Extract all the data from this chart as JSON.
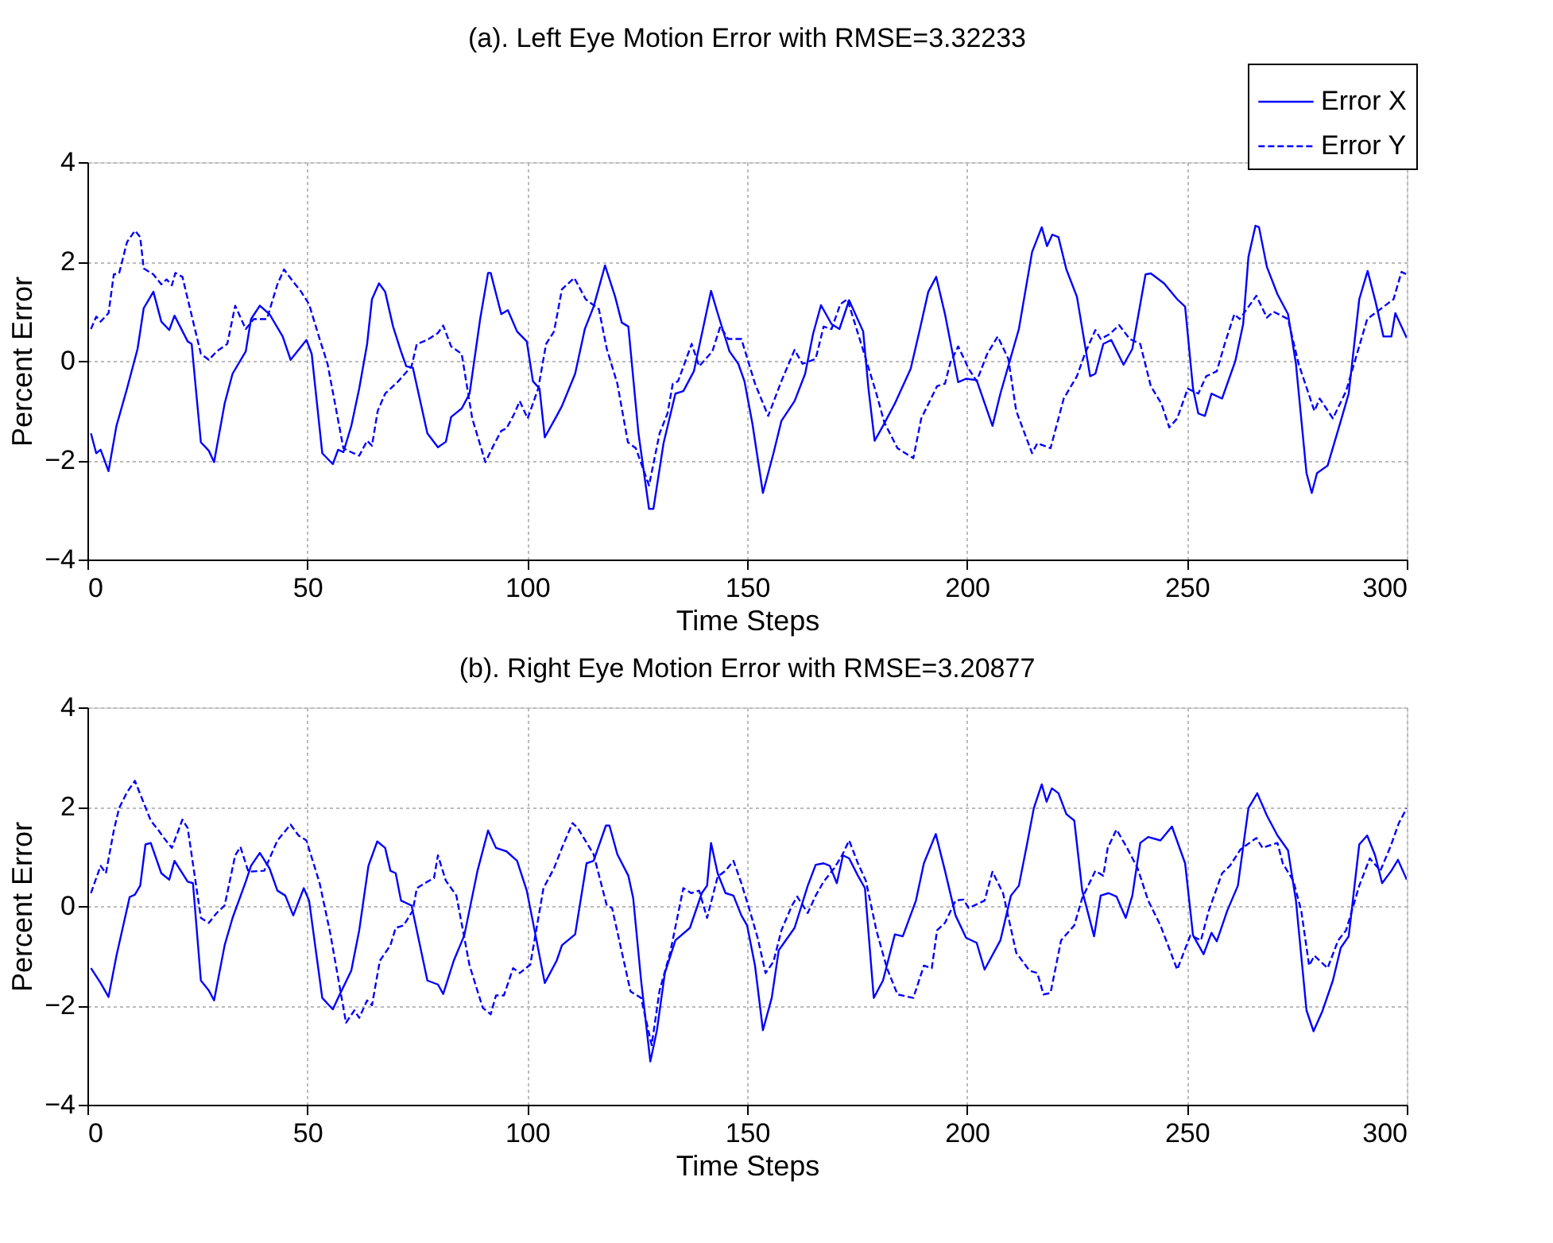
{
  "chart_data": [
    {
      "type": "line",
      "title": "(a). Left Eye Motion Error with RMSE=3.32233",
      "xlabel": "Time Steps",
      "ylabel": "Percent Error",
      "xlim": [
        0,
        300
      ],
      "xticks": [
        0,
        50,
        100,
        150,
        200,
        250,
        300
      ],
      "ylim": [
        -4,
        4
      ],
      "yticks": [
        -4,
        -2,
        0,
        2,
        4
      ],
      "grid": true,
      "legend": "top right",
      "series": [
        {
          "name": "Error X",
          "color": "#0000ff",
          "line_style": "solid",
          "x": [
            0.8,
            2,
            3,
            4.8,
            6.6,
            9,
            11.4,
            12.8,
            15,
            16.8,
            18.6,
            19.8,
            22.8,
            23.7,
            25.8,
            27.6,
            28.8,
            31.2,
            33,
            36,
            37.2,
            39.2,
            41.4,
            44.4,
            46.2,
            49.8,
            51,
            53.4,
            55.8,
            57,
            58.2,
            60,
            61.8,
            63.6,
            64.7,
            66.3,
            67.7,
            69.5,
            71.3,
            72.5,
            74,
            77.3,
            79.7,
            81.5,
            82.7,
            85.1,
            86.9,
            89.3,
            91.1,
            91.7,
            94.1,
            95.6,
            97.7,
            99.9,
            101.3,
            102.8,
            104,
            106.7,
            107.9,
            110.9,
            113.1,
            115.1,
            117.7,
            120,
            121.5,
            123,
            125.3,
            127.7,
            128.7,
            131,
            133.7,
            135.5,
            137.9,
            141.8,
            143.3,
            146,
            148,
            149.4,
            151.2,
            153.6,
            156,
            157.8,
            160.8,
            163.2,
            165,
            166.8,
            169.2,
            171,
            173.2,
            176.4,
            177.6,
            179,
            180.9,
            183.6,
            187.2,
            189.3,
            191.2,
            193,
            195,
            198,
            199.8,
            202.2,
            205.8,
            207.6,
            211.8,
            214.8,
            217,
            218.2,
            219.4,
            220.8,
            222.6,
            225,
            228,
            229.2,
            231,
            232.8,
            235.6,
            237.6,
            240.6,
            241.8,
            244.8,
            247.8,
            249.6,
            251.4,
            252.6,
            254.1,
            255.6,
            258,
            261,
            262.8,
            264,
            265.6,
            266.4,
            268.2,
            270.6,
            273,
            274.8,
            277.2,
            278.4,
            279.6,
            282,
            285,
            286.8,
            289.2,
            291.1,
            292.9,
            294.7,
            296.5,
            297.4,
            300
          ],
          "values": [
            -1.46,
            -1.86,
            -1.79,
            -2.22,
            -1.31,
            -0.56,
            0.24,
            1.06,
            1.39,
            0.79,
            0.62,
            0.91,
            0.39,
            0.34,
            -1.64,
            -1.81,
            -2.04,
            -0.86,
            -0.26,
            0.19,
            0.84,
            1.11,
            0.94,
            0.49,
            0.02,
            0.42,
            0.14,
            -1.86,
            -2.08,
            -1.79,
            -1.84,
            -1.31,
            -0.56,
            0.34,
            1.24,
            1.56,
            1.39,
            0.69,
            0.19,
            -0.11,
            -0.14,
            -1.46,
            -1.74,
            -1.63,
            -1.13,
            -0.96,
            -0.66,
            0.84,
            1.77,
            1.77,
            0.94,
            1.02,
            0.59,
            0.39,
            -0.41,
            -0.56,
            -1.54,
            -1.11,
            -0.91,
            -0.26,
            0.64,
            1.09,
            1.92,
            1.29,
            0.77,
            0.69,
            -1.46,
            -2.98,
            -2.98,
            -1.66,
            -0.66,
            -0.61,
            -0.21,
            1.41,
            0.96,
            0.19,
            -0.06,
            -0.41,
            -1.26,
            -2.66,
            -1.86,
            -1.21,
            -0.81,
            -0.26,
            0.54,
            1.12,
            0.74,
            0.64,
            1.22,
            0.59,
            -0.56,
            -1.61,
            -1.31,
            -0.86,
            -0.16,
            0.64,
            1.39,
            1.69,
            0.94,
            -0.43,
            -0.36,
            -0.39,
            -1.31,
            -0.66,
            0.64,
            2.19,
            2.69,
            2.31,
            2.54,
            2.49,
            1.84,
            1.29,
            -0.31,
            -0.26,
            0.34,
            0.42,
            -0.08,
            0.24,
            1.74,
            1.76,
            1.56,
            1.24,
            1.09,
            -0.56,
            -1.06,
            -1.11,
            -0.66,
            -0.76,
            -0.01,
            0.74,
            2.09,
            2.72,
            2.69,
            1.89,
            1.34,
            0.94,
            -0.06,
            -2.26,
            -2.66,
            -2.26,
            -2.11,
            -1.21,
            -0.66,
            1.24,
            1.81,
            1.19,
            0.49,
            0.49,
            0.96,
            0.46
          ]
        },
        {
          "name": "Error Y",
          "color": "#0000ff",
          "line_style": "dashed",
          "x": [
            0.8,
            2,
            3,
            4.8,
            6,
            7.2,
            9,
            10.8,
            12,
            12.8,
            15,
            16.8,
            18,
            19.2,
            20,
            21.6,
            25.8,
            27.6,
            29.4,
            31.8,
            33.6,
            36,
            37.8,
            40.8,
            43.2,
            44.7,
            46.8,
            48.6,
            50.4,
            52.8,
            54.6,
            58.2,
            60,
            61.8,
            63.6,
            64.7,
            66,
            67.7,
            70.7,
            73.7,
            74.9,
            77.3,
            79.7,
            80.9,
            82.7,
            85.1,
            87.5,
            90.5,
            92.3,
            94.1,
            95.3,
            97.1,
            98.3,
            100.1,
            102.5,
            104.3,
            106.1,
            107.9,
            110.7,
            113.3,
            116.3,
            118.1,
            120.5,
            122.9,
            124.7,
            127.7,
            130.1,
            131.9,
            133.1,
            134.3,
            137.4,
            139.1,
            142.1,
            143.9,
            145.7,
            148.7,
            151.8,
            154.8,
            157.8,
            160.8,
            162.6,
            165.6,
            167.4,
            169.2,
            171.2,
            172.8,
            177,
            179.4,
            181.2,
            184.2,
            187.8,
            189.6,
            193.2,
            195,
            196.2,
            198,
            200.4,
            202.2,
            204.6,
            207,
            209.4,
            211.2,
            214.8,
            216,
            219,
            222,
            225,
            226.8,
            229.2,
            230.4,
            232.5,
            234.6,
            237,
            239.4,
            241.8,
            244.2,
            246,
            247.8,
            250.2,
            252.6,
            254.4,
            256.8,
            258.6,
            260.8,
            262,
            265.8,
            268.2,
            269.7,
            273,
            275.4,
            279,
            280.2,
            283.2,
            286.2,
            291,
            292.8,
            297,
            298.8,
            300
          ],
          "values": [
            0.64,
            0.89,
            0.79,
            0.96,
            1.74,
            1.76,
            2.39,
            2.62,
            2.49,
            1.86,
            1.74,
            1.54,
            1.64,
            1.52,
            1.77,
            1.69,
            0.14,
            0.02,
            0.19,
            0.34,
            1.11,
            0.64,
            0.84,
            0.84,
            1.54,
            1.84,
            1.59,
            1.39,
            1.14,
            0.44,
            -0.06,
            -1.76,
            -1.84,
            -1.91,
            -1.61,
            -1.71,
            -1.01,
            -0.66,
            -0.41,
            -0.11,
            0.34,
            0.42,
            0.56,
            0.71,
            0.29,
            0.14,
            -1.16,
            -2.04,
            -1.71,
            -1.41,
            -1.36,
            -1.06,
            -0.81,
            -1.16,
            -0.56,
            0.34,
            0.59,
            1.44,
            1.67,
            1.24,
            1.04,
            0.24,
            -0.46,
            -1.64,
            -1.76,
            -2.51,
            -1.46,
            -1.06,
            -0.46,
            -0.41,
            0.34,
            -0.11,
            0.19,
            0.69,
            0.44,
            0.44,
            -0.46,
            -1.11,
            -0.41,
            0.22,
            -0.06,
            0.04,
            0.69,
            0.64,
            1.14,
            1.24,
            0.04,
            -0.66,
            -1.24,
            -1.76,
            -1.96,
            -1.16,
            -0.51,
            -0.46,
            -0.04,
            0.29,
            -0.16,
            -0.41,
            0.14,
            0.49,
            0.04,
            -1.01,
            -1.86,
            -1.66,
            -1.76,
            -0.76,
            -0.31,
            0.14,
            0.62,
            0.44,
            0.54,
            0.72,
            0.44,
            0.34,
            -0.51,
            -0.86,
            -1.34,
            -1.16,
            -0.56,
            -0.66,
            -0.31,
            -0.21,
            0.34,
            0.94,
            0.84,
            1.31,
            0.87,
            0.99,
            0.84,
            -0.06,
            -1.01,
            -0.76,
            -1.16,
            -0.61,
            0.84,
            0.96,
            1.24,
            1.79,
            1.74
          ]
        }
      ]
    },
    {
      "type": "line",
      "title": "(b). Right Eye Motion Error with RMSE=3.20877",
      "xlabel": "Time Steps",
      "ylabel": "Percent Error",
      "xlim": [
        0,
        300
      ],
      "xticks": [
        0,
        50,
        100,
        150,
        200,
        250,
        300
      ],
      "ylim": [
        -4,
        4
      ],
      "yticks": [
        -4,
        -2,
        0,
        2,
        4
      ],
      "grid": true,
      "series": [
        {
          "color": "#0000ff",
          "line_style": "solid",
          "x": [
            0.8,
            3,
            4.8,
            6.6,
            9.6,
            10.8,
            12,
            13.2,
            14.4,
            16.8,
            18.6,
            19.8,
            22.8,
            24,
            25.8,
            27.6,
            28.8,
            31.2,
            33,
            36,
            37.2,
            39.2,
            41.4,
            43.2,
            45,
            46.8,
            49.2,
            50.4,
            53.4,
            55.8,
            57,
            60,
            61.8,
            63.9,
            65.9,
            67.7,
            68.9,
            70.1,
            71.3,
            73.7,
            77.3,
            79.7,
            80.9,
            83.3,
            85.7,
            88.7,
            91.1,
            92.9,
            95.3,
            97.7,
            99.9,
            101.9,
            104,
            106.7,
            107.9,
            110.9,
            113.5,
            115.1,
            117.9,
            118.7,
            120.5,
            123,
            124.1,
            125.9,
            128,
            129.5,
            131.3,
            133.7,
            137,
            139.7,
            140.9,
            141.8,
            143.3,
            145.1,
            146.9,
            148.7,
            150,
            151.8,
            153.6,
            155.6,
            157.2,
            158.4,
            160.8,
            163.8,
            165.6,
            167.4,
            168.8,
            170.4,
            171.8,
            173.2,
            175.2,
            176.8,
            178.8,
            180.9,
            183.6,
            185.4,
            188.4,
            190.2,
            192.9,
            195,
            197.4,
            199.8,
            202.2,
            204,
            207.6,
            210,
            211.8,
            213.6,
            215.2,
            217,
            218.1,
            219.3,
            220.8,
            222.6,
            224.4,
            226.2,
            228.9,
            230.4,
            232.2,
            234,
            236.1,
            237.6,
            239.4,
            241.2,
            244,
            246.6,
            249.6,
            251.4,
            253.8,
            255.6,
            256.8,
            259.2,
            261.6,
            264,
            266,
            268.2,
            270.6,
            273,
            274.8,
            277.2,
            278.8,
            280.8,
            283.2,
            285,
            286.8,
            289.2,
            291,
            292.8,
            294.4,
            296.5,
            298,
            300
          ],
          "values": [
            -1.25,
            -1.55,
            -1.83,
            -1.0,
            0.18,
            0.23,
            0.41,
            1.24,
            1.27,
            0.66,
            0.53,
            0.91,
            0.49,
            0.46,
            -1.5,
            -1.7,
            -1.9,
            -0.79,
            -0.24,
            0.49,
            0.81,
            1.07,
            0.76,
            0.31,
            0.21,
            -0.19,
            0.36,
            0.11,
            -1.85,
            -2.08,
            -1.85,
            -1.3,
            -0.49,
            0.81,
            1.3,
            1.17,
            0.71,
            0.66,
            0.11,
            0.01,
            -1.5,
            -1.58,
            -1.77,
            -1.1,
            -0.59,
            0.71,
            1.52,
            1.17,
            1.1,
            0.91,
            0.31,
            -0.59,
            -1.55,
            -1.1,
            -0.79,
            -0.57,
            0.86,
            0.91,
            1.62,
            1.62,
            1.04,
            0.61,
            0.16,
            -1.5,
            -3.13,
            -2.5,
            -1.35,
            -0.69,
            -0.44,
            0.26,
            0.41,
            1.27,
            0.66,
            0.26,
            0.21,
            -0.19,
            -0.39,
            -1.2,
            -2.5,
            -1.85,
            -0.89,
            -0.74,
            -0.44,
            0.41,
            0.83,
            0.86,
            0.81,
            0.46,
            1.02,
            0.96,
            0.61,
            0.36,
            -1.85,
            -1.5,
            -0.57,
            -0.61,
            0.11,
            0.86,
            1.45,
            0.71,
            -0.19,
            -0.64,
            -0.74,
            -1.28,
            -0.69,
            0.21,
            0.41,
            1.22,
            1.97,
            2.45,
            2.1,
            2.37,
            2.27,
            1.85,
            1.72,
            0.31,
            -0.61,
            0.21,
            0.26,
            0.19,
            -0.24,
            0.21,
            1.27,
            1.39,
            1.32,
            1.6,
            0.86,
            -0.59,
            -0.97,
            -0.54,
            -0.71,
            -0.09,
            0.41,
            1.97,
            2.27,
            1.82,
            1.42,
            1.12,
            0.11,
            -2.1,
            -2.52,
            -2.12,
            -1.5,
            -0.84,
            -0.61,
            1.24,
            1.42,
            1.02,
            0.46,
            0.71,
            0.93,
            0.53
          ]
        },
        {
          "color": "#0000ff",
          "line_style": "dashed",
          "x": [
            0.8,
            3,
            4.2,
            6,
            7.2,
            9,
            10.8,
            12.6,
            14.4,
            16.2,
            17.4,
            19.2,
            21.6,
            22.8,
            25.8,
            27.6,
            29.4,
            31.2,
            33.6,
            34.8,
            36.6,
            40.2,
            43.2,
            46.2,
            48,
            49.8,
            52.8,
            55.2,
            58.8,
            60.7,
            61.8,
            63.6,
            64.7,
            66.5,
            68.9,
            70.1,
            71.9,
            74,
            74.9,
            77.3,
            78.8,
            79.7,
            81.5,
            83.9,
            86.9,
            89.9,
            91.7,
            92.9,
            94.7,
            96.8,
            98.3,
            100.7,
            103.7,
            106.1,
            107.9,
            110.3,
            111.5,
            115.1,
            118.1,
            119.3,
            121.7,
            123.5,
            125.9,
            128.3,
            130.1,
            132.5,
            135.5,
            137.3,
            139.1,
            140.9,
            143.3,
            145.1,
            146.9,
            148.7,
            150.6,
            152.4,
            154.2,
            156,
            157.8,
            160.2,
            161.4,
            163.8,
            165.6,
            167.4,
            169.8,
            171.6,
            173.2,
            175.2,
            177,
            179.4,
            181.8,
            184.2,
            187.8,
            190.2,
            192,
            193.2,
            195,
            197.4,
            199.2,
            200.4,
            204,
            205.8,
            208.2,
            211.2,
            214.2,
            216,
            217.4,
            219,
            221.4,
            224.4,
            226.2,
            229.2,
            231,
            232,
            234,
            236.4,
            238.8,
            241.2,
            244,
            247.8,
            250.8,
            253.2,
            255,
            258,
            259.8,
            262.2,
            265.8,
            267.2,
            268.8,
            270.6,
            271.8,
            274.2,
            276,
            277.8,
            279,
            282,
            284.4,
            286.2,
            289.2,
            291.6,
            294,
            296.4,
            298.2,
            300
          ],
          "values": [
            0.26,
            0.81,
            0.66,
            1.52,
            1.97,
            2.29,
            2.52,
            2.12,
            1.72,
            1.52,
            1.37,
            1.17,
            1.74,
            1.57,
            -0.24,
            -0.34,
            -0.14,
            0.01,
            1.02,
            1.19,
            0.69,
            0.71,
            1.32,
            1.64,
            1.42,
            1.32,
            0.46,
            -0.54,
            -2.35,
            -2.1,
            -2.25,
            -1.9,
            -2.0,
            -1.1,
            -0.79,
            -0.44,
            -0.39,
            -0.09,
            0.36,
            0.49,
            0.56,
            1.02,
            0.51,
            0.21,
            -1.2,
            -2.05,
            -2.18,
            -1.8,
            -1.8,
            -1.25,
            -1.35,
            -1.18,
            0.36,
            0.76,
            1.17,
            1.67,
            1.57,
            1.04,
            0.01,
            -0.04,
            -1.0,
            -1.72,
            -1.85,
            -2.8,
            -1.7,
            -0.94,
            0.36,
            0.26,
            0.31,
            -0.24,
            0.59,
            0.71,
            0.91,
            0.46,
            -0.09,
            -0.64,
            -1.35,
            -1.12,
            -0.49,
            0.01,
            0.19,
            -0.14,
            0.21,
            0.49,
            0.76,
            1.02,
            1.32,
            0.86,
            0.51,
            -0.49,
            -1.25,
            -1.78,
            -1.85,
            -1.2,
            -1.25,
            -0.49,
            -0.34,
            0.11,
            0.13,
            -0.04,
            0.11,
            0.69,
            0.26,
            -0.94,
            -1.3,
            -1.35,
            -1.78,
            -1.75,
            -0.69,
            -0.39,
            0.16,
            0.71,
            0.61,
            1.17,
            1.54,
            1.17,
            0.76,
            0.11,
            -0.39,
            -1.28,
            -0.59,
            -0.69,
            -0.09,
            0.66,
            0.81,
            1.14,
            1.37,
            1.17,
            1.22,
            1.27,
            0.86,
            0.51,
            -0.09,
            -1.2,
            -1.0,
            -1.25,
            -0.69,
            -0.49,
            0.41,
            0.96,
            0.71,
            1.22,
            1.67,
            1.97
          ]
        }
      ]
    }
  ]
}
